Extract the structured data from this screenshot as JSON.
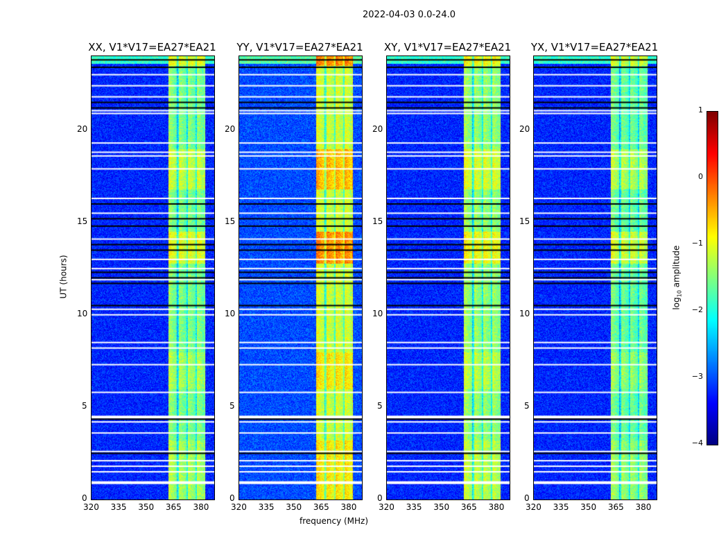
{
  "suptitle": "2022-04-03 0.0-24.0",
  "chart_data": {
    "type": "heatmap",
    "xlabel": "frequency (MHz)",
    "ylabel": "UT (hours)",
    "xlim": [
      320,
      387
    ],
    "ylim": [
      0,
      24
    ],
    "xticks": [
      "320",
      "335",
      "350",
      "365",
      "380"
    ],
    "xtick_values": [
      320,
      335,
      350,
      365,
      380
    ],
    "yticks": [
      "0",
      "5",
      "10",
      "15",
      "20"
    ],
    "ytick_values": [
      0,
      5,
      10,
      15,
      20
    ],
    "colormap": "jet",
    "colorbar": {
      "label": "log10 amplitude",
      "label_main": "log",
      "label_sub": "10",
      "label_rest": " amplitude",
      "range": [
        -4,
        1
      ],
      "ticks": [
        "1",
        "0",
        "−1",
        "−2",
        "−3",
        "−4"
      ],
      "tick_values": [
        1,
        0,
        -1,
        -2,
        -3,
        -4
      ]
    },
    "bright_band_mhz": [
      362,
      380
    ],
    "subband_edges_mhz": [
      362,
      367,
      372,
      377,
      382
    ],
    "flagged_white_hours": [
      0.95,
      1.5,
      1.8,
      2.1,
      2.6,
      3.6,
      4.2,
      4.5,
      5.8,
      7.3,
      8.2,
      8.5,
      10.0,
      10.3,
      11.9,
      12.5,
      13.0,
      14.1,
      15.5,
      16.3,
      17.9,
      18.6,
      18.8,
      19.3,
      20.9,
      21.05,
      21.8,
      22.4,
      23.0
    ],
    "flagged_black_hours": [
      2.5,
      4.35,
      10.5,
      11.7,
      12.0,
      12.3,
      13.5,
      13.8,
      14.8,
      15.2,
      16.0,
      21.2,
      21.5,
      23.4,
      23.8
    ],
    "panels": [
      {
        "title": "XX, V1*V17=EA27*EA21",
        "band_level": -1.3,
        "background_level": -3.2
      },
      {
        "title": "YY, V1*V17=EA27*EA21",
        "band_level": -0.9,
        "background_level": -3.0
      },
      {
        "title": "XY, V1*V17=EA27*EA21",
        "band_level": -1.2,
        "background_level": -3.2
      },
      {
        "title": "YX, V1*V17=EA27*EA21",
        "band_level": -1.4,
        "background_level": -3.2
      }
    ]
  }
}
